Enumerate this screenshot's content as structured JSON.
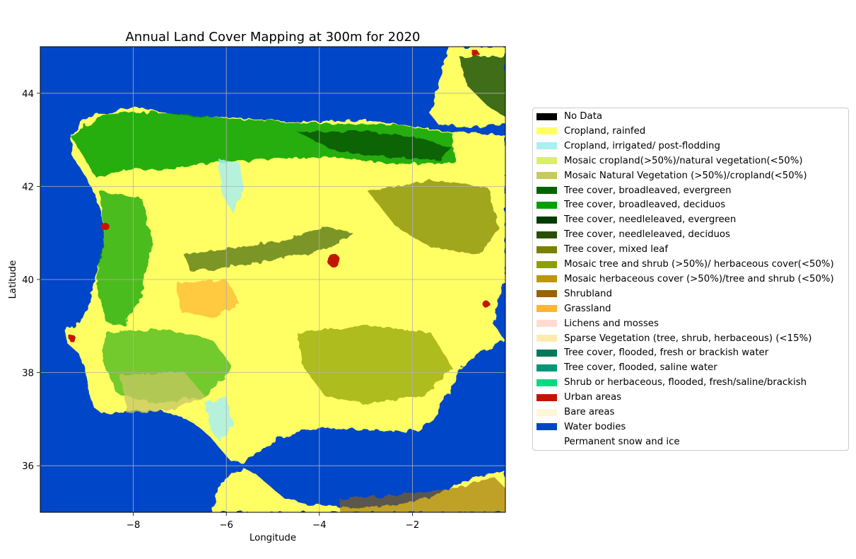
{
  "map": {
    "title": "Annual Land Cover Mapping at 300m for 2020",
    "xlabel": "Longitude",
    "ylabel": "Latitude",
    "xlim": [
      -10,
      0
    ],
    "ylim": [
      35,
      45
    ],
    "grid": true,
    "x_ticks": [
      {
        "value": -8,
        "label": "−8"
      },
      {
        "value": -6,
        "label": "−6"
      },
      {
        "value": -4,
        "label": "−4"
      },
      {
        "value": -2,
        "label": "−2"
      }
    ],
    "y_ticks": [
      {
        "value": 36,
        "label": "36"
      },
      {
        "value": 38,
        "label": "38"
      },
      {
        "value": 40,
        "label": "40"
      },
      {
        "value": 42,
        "label": "42"
      },
      {
        "value": 44,
        "label": "44"
      }
    ],
    "legend_placement": "right",
    "colors": {
      "water": "#0046c8",
      "cropland": "#ffff64",
      "grid": "#b0b0b0"
    }
  },
  "legend": [
    {
      "label": "No Data",
      "color": "#000000"
    },
    {
      "label": "Cropland, rainfed",
      "color": "#ffff64"
    },
    {
      "label": "Cropland, irrigated/ post-flodding",
      "color": "#aaf0f0"
    },
    {
      "label": "Mosaic cropland(>50%)/natural vegetation(<50%)",
      "color": "#dcf064"
    },
    {
      "label": "Mosaic Natural Vegetation (>50%)/cropland(<50%)",
      "color": "#c8c864"
    },
    {
      "label": "Tree cover, broadleaved, evergreen",
      "color": "#006400"
    },
    {
      "label": "Tree cover, broadleaved, deciduos",
      "color": "#00a000"
    },
    {
      "label": "Tree cover, needleleaved, evergreen",
      "color": "#003c00"
    },
    {
      "label": "Tree cover, needleleaved, deciduos",
      "color": "#285000"
    },
    {
      "label": "Tree cover, mixed leaf",
      "color": "#788200"
    },
    {
      "label": "Mosaic tree and shrub (>50%)/ herbaceous cover(<50%)",
      "color": "#8ca000"
    },
    {
      "label": "Mosaic herbaceous cover (>50%)/tree and shrub (<50%)",
      "color": "#be9600"
    },
    {
      "label": "Shrubland",
      "color": "#966400"
    },
    {
      "label": "Grassland",
      "color": "#ffb432"
    },
    {
      "label": "Lichens and mosses",
      "color": "#ffdcd2"
    },
    {
      "label": "Sparse Vegetation (tree, shrub, herbaceous) (<15%)",
      "color": "#ffebaf"
    },
    {
      "label": "Tree cover, flooded, fresh or brackish water",
      "color": "#00785a"
    },
    {
      "label": "Tree cover, flooded, saline water",
      "color": "#009678"
    },
    {
      "label": "Shrub or herbaceous, flooded, fresh/saline/brackish",
      "color": "#00dc82"
    },
    {
      "label": "Urban areas",
      "color": "#c31400"
    },
    {
      "label": "Bare areas",
      "color": "#fff5d7"
    },
    {
      "label": "Water bodies",
      "color": "#0046c8"
    },
    {
      "label": "Permanent snow and ice",
      "color": "#ffffff"
    }
  ]
}
